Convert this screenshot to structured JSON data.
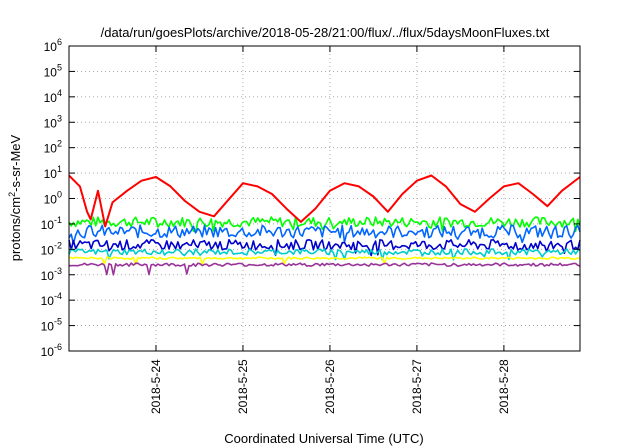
{
  "chart_data": {
    "type": "line",
    "title": "/data/run/goesPlots/archive/2018-05-28/21:00/flux/../flux/5daysMoonFluxes.txt",
    "xlabel": "Coordinated Universal Time (UTC)",
    "ylabel": {
      "prefix": "protons/cm",
      "superscript": "2",
      "suffix": "-s-sr-MeV"
    },
    "y_scale": "log",
    "ylim": [
      1e-06,
      1000000.0
    ],
    "y_ticks": [
      {
        "base": "10",
        "exp": "-6"
      },
      {
        "base": "10",
        "exp": "-5"
      },
      {
        "base": "10",
        "exp": "-4"
      },
      {
        "base": "10",
        "exp": "-3"
      },
      {
        "base": "10",
        "exp": "-2"
      },
      {
        "base": "10",
        "exp": "-1"
      },
      {
        "base": "10",
        "exp": "0"
      },
      {
        "base": "10",
        "exp": "1"
      },
      {
        "base": "10",
        "exp": "2"
      },
      {
        "base": "10",
        "exp": "3"
      },
      {
        "base": "10",
        "exp": "4"
      },
      {
        "base": "10",
        "exp": "5"
      },
      {
        "base": "10",
        "exp": "6"
      }
    ],
    "xlim": [
      "2018-05-23 00:00",
      "2018-05-28 21:00"
    ],
    "x_ticks": [
      "2018-5-24",
      "2018-5-25",
      "2018-5-26",
      "2018-5-27",
      "2018-5-28"
    ],
    "grid": true,
    "legend": "none",
    "series": [
      {
        "color": "#ff0000",
        "x": [
          "2018-05-23 00:00",
          "2018-05-23 03:00",
          "2018-05-23 05:00",
          "2018-05-23 06:00",
          "2018-05-23 08:00",
          "2018-05-23 10:00",
          "2018-05-23 12:00",
          "2018-05-23 16:00",
          "2018-05-23 20:00",
          "2018-05-24 00:00",
          "2018-05-24 04:00",
          "2018-05-24 08:00",
          "2018-05-24 12:00",
          "2018-05-24 16:00",
          "2018-05-24 20:00",
          "2018-05-25 00:00",
          "2018-05-25 04:00",
          "2018-05-25 08:00",
          "2018-05-25 12:00",
          "2018-05-25 16:00",
          "2018-05-25 20:00",
          "2018-05-26 00:00",
          "2018-05-26 04:00",
          "2018-05-26 08:00",
          "2018-05-26 12:00",
          "2018-05-26 16:00",
          "2018-05-26 20:00",
          "2018-05-27 00:00",
          "2018-05-27 04:00",
          "2018-05-27 08:00",
          "2018-05-27 12:00",
          "2018-05-27 16:00",
          "2018-05-27 20:00",
          "2018-05-28 00:00",
          "2018-05-28 04:00",
          "2018-05-28 08:00",
          "2018-05-28 12:00",
          "2018-05-28 16:00",
          "2018-05-28 21:00"
        ],
        "y": [
          8,
          3,
          0.3,
          0.15,
          2,
          0.08,
          0.7,
          2,
          5,
          7,
          3,
          0.8,
          0.3,
          0.2,
          0.9,
          4,
          3,
          1.5,
          0.4,
          0.12,
          0.4,
          2,
          4,
          3,
          1.2,
          0.3,
          1.5,
          5,
          8,
          3,
          0.6,
          0.3,
          1,
          3,
          4,
          1.5,
          0.5,
          2,
          7
        ]
      }
    ],
    "bands": [
      {
        "color": "#00ff00",
        "x": [
          "2018-05-23 00:00",
          "2018-05-28 21:00"
        ],
        "y_center": [
          0.12,
          0.12
        ],
        "y_spread": 1.6
      },
      {
        "color": "#0066ff",
        "x": [
          "2018-05-23 00:00",
          "2018-05-28 21:00"
        ],
        "y_center": [
          0.05,
          0.05
        ],
        "y_spread": 1.8
      },
      {
        "color": "#0000cc",
        "x": [
          "2018-05-23 00:00",
          "2018-05-28 21:00"
        ],
        "y_center": [
          0.015,
          0.015
        ],
        "y_spread": 1.6
      },
      {
        "color": "#00cccc",
        "x": [
          "2018-05-23 00:00",
          "2018-05-28 21:00"
        ],
        "y_center": [
          0.008,
          0.008
        ],
        "y_spread": 1.3
      },
      {
        "color": "#ffff00",
        "x": [
          "2018-05-23 00:00",
          "2018-05-28 21:00"
        ],
        "y_center": [
          0.0045,
          0.0045
        ],
        "y_spread": 1.1
      },
      {
        "color": "#993399",
        "x": [
          "2018-05-23 00:00",
          "2018-05-28 21:00"
        ],
        "y_center": [
          0.0025,
          0.0025
        ],
        "y_spread": 1.15
      }
    ]
  }
}
